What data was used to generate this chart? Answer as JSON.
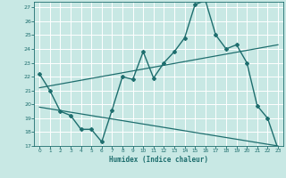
{
  "xlabel": "Humidex (Indice chaleur)",
  "xlim": [
    -0.5,
    23.5
  ],
  "ylim": [
    17,
    27.4
  ],
  "yticks": [
    17,
    18,
    19,
    20,
    21,
    22,
    23,
    24,
    25,
    26,
    27
  ],
  "xticks": [
    0,
    1,
    2,
    3,
    4,
    5,
    6,
    7,
    8,
    9,
    10,
    11,
    12,
    13,
    14,
    15,
    16,
    17,
    18,
    19,
    20,
    21,
    22,
    23
  ],
  "bg_color": "#c8e8e4",
  "line_color": "#1e6e6e",
  "grid_color": "#ffffff",
  "main_line": {
    "x": [
      0,
      1,
      2,
      3,
      4,
      5,
      6,
      7,
      8,
      9,
      10,
      11,
      12,
      13,
      14,
      15,
      16,
      17,
      18,
      19,
      20,
      21,
      22,
      23
    ],
    "y": [
      22.2,
      21.0,
      19.5,
      19.2,
      18.2,
      18.2,
      17.3,
      19.6,
      22.0,
      21.8,
      23.8,
      21.9,
      23.0,
      23.8,
      24.8,
      27.2,
      27.5,
      25.0,
      24.0,
      24.3,
      23.0,
      19.9,
      19.0,
      16.8
    ]
  },
  "trend_line1": {
    "x": [
      0,
      23
    ],
    "y": [
      21.2,
      24.3
    ]
  },
  "trend_line2": {
    "x": [
      0,
      23
    ],
    "y": [
      19.8,
      17.0
    ]
  }
}
